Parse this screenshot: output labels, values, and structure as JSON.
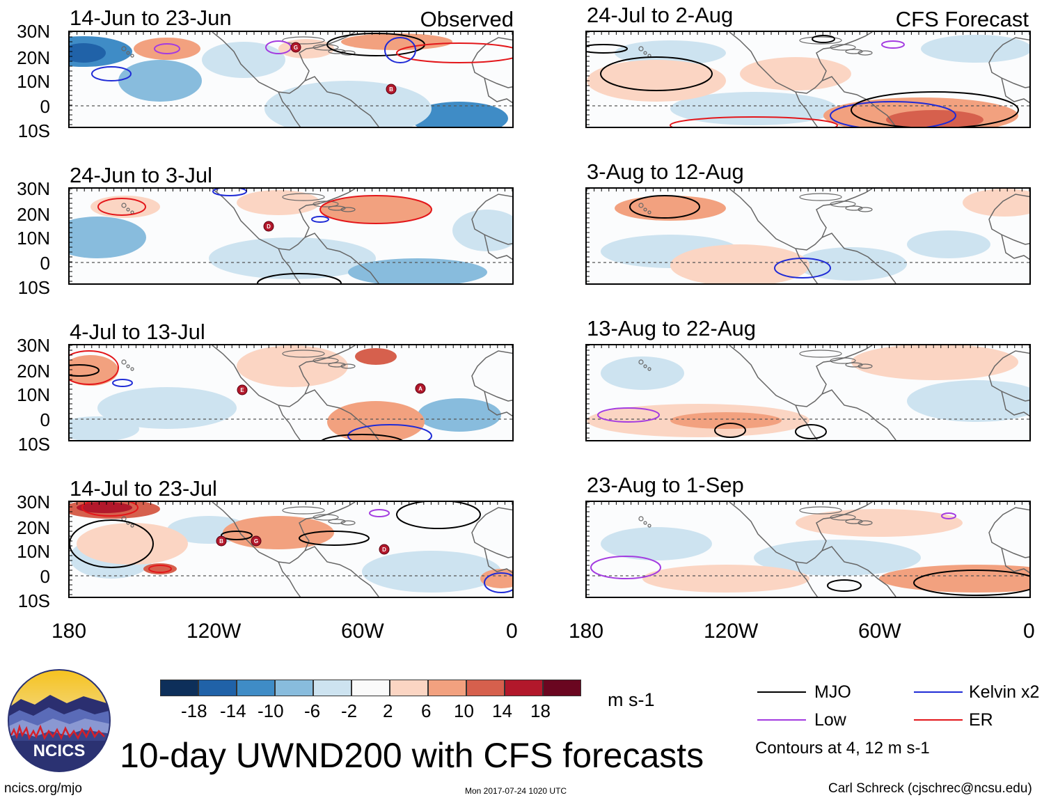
{
  "observed_label": "Observed",
  "forecast_label": "CFS Forecast",
  "panels_left": [
    {
      "title": "14-Jun to 23-Jun"
    },
    {
      "title": "24-Jun to 3-Jul"
    },
    {
      "title": "4-Jul to 13-Jul"
    },
    {
      "title": "14-Jul to 23-Jul"
    }
  ],
  "panels_right": [
    {
      "title": "24-Jul to 2-Aug"
    },
    {
      "title": "3-Aug to 12-Aug"
    },
    {
      "title": "13-Aug to 22-Aug"
    },
    {
      "title": "23-Aug to 1-Sep"
    }
  ],
  "lat_labels": [
    "30N",
    "20N",
    "10N",
    "0",
    "10S"
  ],
  "lon_labels": [
    "180",
    "120W",
    "60W",
    "0"
  ],
  "colorbar": {
    "unit": "m s-1",
    "labels": [
      "-18",
      "-14",
      "-10",
      "-6",
      "-2",
      "2",
      "6",
      "10",
      "14",
      "18"
    ],
    "colors": [
      "#0d2f5a",
      "#2062a8",
      "#3f8cc6",
      "#88bcdd",
      "#cde3f0",
      "#fafafa",
      "#fbd5c3",
      "#f2a17f",
      "#d6604d",
      "#b2182b",
      "#6a0620"
    ]
  },
  "legend": {
    "items": [
      {
        "label": "MJO",
        "color": "#000000"
      },
      {
        "label": "Kelvin x2",
        "color": "#1f2bd6"
      },
      {
        "label": "Low",
        "color": "#a33be0"
      },
      {
        "label": "ER",
        "color": "#e3161a"
      }
    ],
    "note": "Contours at 4, 12 m s-1"
  },
  "main_title": "10-day UWND200 with CFS forecasts",
  "logo_text": "NCICS",
  "footer": {
    "url": "ncics.org/mjo",
    "timestamp": "Mon 2017-07-24 1020 UTC",
    "credit": "Carl Schreck (cjschrec@ncsu.edu)"
  },
  "storm_markers": {
    "panel1": [
      "G",
      "B"
    ],
    "panel2": [
      "D"
    ],
    "panel3": [
      "E",
      "A"
    ],
    "panel4": [
      "B",
      "G",
      "D"
    ]
  }
}
